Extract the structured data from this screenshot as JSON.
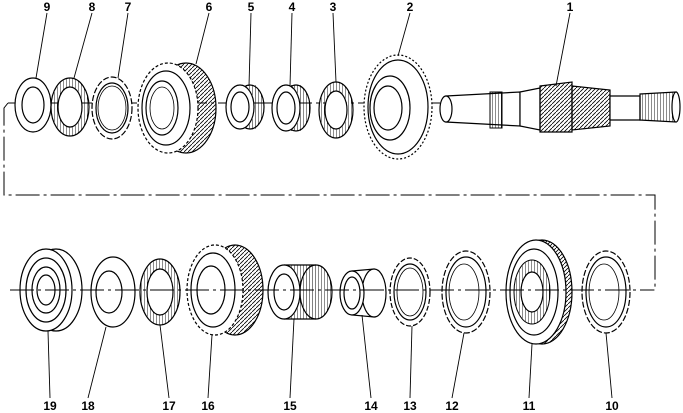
{
  "callouts": {
    "c1": "1",
    "c2": "2",
    "c3": "3",
    "c4": "4",
    "c5": "5",
    "c6": "6",
    "c7": "7",
    "c8": "8",
    "c9": "9",
    "c10": "10",
    "c11": "11",
    "c12": "12",
    "c13": "13",
    "c14": "14",
    "c15": "15",
    "c16": "16",
    "c17": "17",
    "c18": "18",
    "c19": "19"
  }
}
